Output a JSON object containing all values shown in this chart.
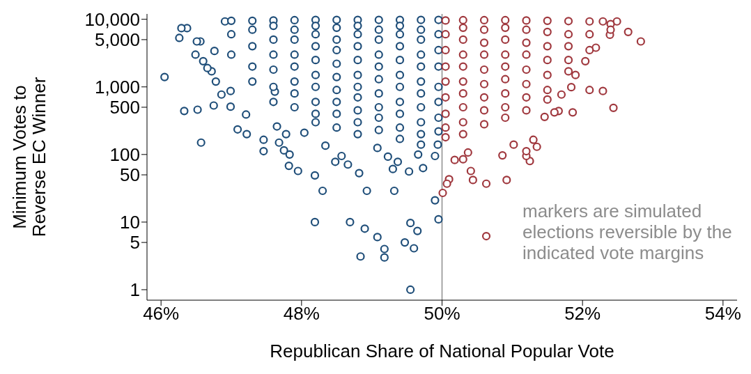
{
  "chart_data": {
    "type": "scatter",
    "xlabel": "Republican Share of National Popular Vote",
    "ylabel": "Minimum Votes to\nReverse EC Winner",
    "log": "y",
    "grid": false,
    "legend": false,
    "marker": "circle",
    "xlim": [
      45.8,
      54.2
    ],
    "xticks": [
      {
        "value": 46,
        "label": "46%"
      },
      {
        "value": 48,
        "label": "48%"
      },
      {
        "value": 50,
        "label": "50%"
      },
      {
        "value": 52,
        "label": "52%"
      },
      {
        "value": 54,
        "label": "54%"
      }
    ],
    "ylim": [
      0.7,
      12000
    ],
    "yticks": [
      1,
      5,
      10,
      50,
      100,
      500,
      {
        "value": 1000,
        "label": "1,000"
      },
      {
        "value": 5000,
        "label": "5,000"
      },
      {
        "value": 10000,
        "label": "10,000"
      }
    ],
    "ref_lines": [
      {
        "axis": "x",
        "value": 50,
        "color": "#8c8c8c"
      }
    ],
    "annotations": [
      "markers are simulated elections reversible by the indicated vote margins"
    ],
    "series": [
      {
        "color": "#1f4e79",
        "x": [
          46.05,
          46.33,
          46.52,
          46.57,
          46.75,
          46.99,
          47.09,
          47.22,
          47.46,
          47.46,
          47.65,
          47.68,
          47.75,
          47.82,
          47.95,
          47.83,
          48.19,
          48.3,
          48.48,
          48.19,
          48.69,
          48.9,
          48.93,
          49.08,
          48.84,
          49.18,
          49.18,
          49.32,
          49.47,
          49.55,
          49.65,
          49.6,
          49.55,
          49.9,
          49.95,
          49.9,
          49.94,
          49.3,
          49.23,
          49.08,
          48.66,
          48.82,
          49.53,
          49.66,
          49.73,
          49.37,
          48.57,
          48.34,
          48.04,
          47.78,
          47.62,
          47.21,
          46.99,
          46.6,
          46.49,
          46.26,
          46.37,
          46.56,
          46.76,
          46.72,
          46.78,
          46.86,
          46.66,
          46.51,
          46.29,
          46.91,
          47.0,
          47.0,
          47.0,
          47.3,
          47.3,
          47.3,
          47.3,
          47.3,
          47.6,
          47.6,
          47.6,
          47.6,
          47.6,
          47.6,
          47.6,
          47.9,
          47.9,
          47.9,
          47.9,
          47.9,
          47.9,
          47.9,
          47.9,
          48.2,
          48.2,
          48.2,
          48.2,
          48.2,
          48.2,
          48.2,
          48.2,
          48.2,
          48.2,
          48.5,
          48.5,
          48.5,
          48.5,
          48.5,
          48.5,
          48.5,
          48.5,
          48.5,
          48.5,
          48.8,
          48.8,
          48.8,
          48.8,
          48.8,
          48.8,
          48.8,
          48.8,
          48.8,
          48.8,
          48.8,
          49.1,
          49.1,
          49.1,
          49.1,
          49.1,
          49.1,
          49.1,
          49.1,
          49.1,
          49.1,
          49.4,
          49.4,
          49.4,
          49.4,
          49.4,
          49.4,
          49.4,
          49.4,
          49.4,
          49.4,
          49.4,
          49.7,
          49.7,
          49.7,
          49.7,
          49.7,
          49.7,
          49.7,
          49.7,
          49.7,
          49.7,
          49.7,
          49.95,
          49.95,
          49.95,
          49.95,
          49.95,
          49.95,
          49.95,
          49.95
        ],
        "values": [
          1400,
          440,
          460,
          150,
          530,
          870,
          235,
          200,
          165,
          112,
          260,
          150,
          115,
          68,
          57,
          100,
          49,
          29,
          78,
          10,
          10,
          8,
          29,
          6,
          3.1,
          4,
          3,
          29,
          5,
          9.7,
          7.4,
          4.1,
          1,
          21,
          11,
          95,
          140,
          61,
          93,
          125,
          71,
          53,
          56,
          100,
          63,
          78,
          95,
          135,
          210,
          200,
          850,
          390,
          510,
          2400,
          3000,
          5300,
          7400,
          4700,
          3400,
          1700,
          1200,
          770,
          1900,
          4700,
          7400,
          9300,
          9500,
          6000,
          3000,
          9500,
          7000,
          4000,
          2000,
          1200,
          9600,
          8000,
          5000,
          3000,
          1800,
          1000,
          600,
          9700,
          7000,
          5000,
          3000,
          2000,
          1200,
          800,
          500,
          9800,
          8000,
          6000,
          4000,
          2500,
          1500,
          1000,
          600,
          400,
          300,
          9800,
          7500,
          5000,
          3500,
          2200,
          1400,
          900,
          600,
          400,
          250,
          9800,
          8000,
          6000,
          4000,
          2500,
          1500,
          1000,
          700,
          450,
          300,
          200,
          9800,
          7000,
          5000,
          3000,
          2000,
          1300,
          800,
          500,
          350,
          230,
          9800,
          8000,
          6000,
          4000,
          2500,
          1500,
          1000,
          600,
          400,
          250,
          170,
          9800,
          7000,
          5000,
          3000,
          2000,
          1200,
          800,
          500,
          300,
          200,
          140,
          9800,
          6000,
          3500,
          2000,
          1000,
          600,
          350,
          220
        ]
      },
      {
        "color": "#a0383e",
        "x": [
          52.83,
          52.65,
          52.29,
          52.44,
          52.1,
          51.84,
          51.66,
          51.86,
          51.46,
          51.35,
          51.25,
          51.2,
          51.02,
          50.92,
          50.63,
          50.63,
          50.44,
          50.41,
          50.18,
          50.1,
          50.07,
          50.01,
          50.3,
          50.37,
          50.86,
          51.2,
          51.3,
          51.6,
          51.7,
          51.9,
          52.04,
          52.19,
          52.39,
          52.49,
          52.29,
          50.05,
          50.05,
          50.05,
          50.05,
          50.05,
          50.05,
          50.05,
          50.05,
          50.05,
          50.3,
          50.3,
          50.3,
          50.3,
          50.3,
          50.3,
          50.3,
          50.3,
          50.3,
          50.3,
          50.6,
          50.6,
          50.6,
          50.6,
          50.6,
          50.6,
          50.6,
          50.6,
          50.6,
          50.9,
          50.9,
          50.9,
          50.9,
          50.9,
          50.9,
          50.9,
          50.9,
          50.9,
          51.2,
          51.2,
          51.2,
          51.2,
          51.2,
          51.2,
          51.2,
          51.2,
          51.5,
          51.5,
          51.5,
          51.5,
          51.5,
          51.5,
          51.5,
          51.8,
          51.8,
          51.8,
          51.8,
          51.8,
          52.1,
          52.1,
          52.1,
          52.4,
          52.4
        ],
        "values": [
          4700,
          6500,
          870,
          490,
          900,
          990,
          440,
          420,
          360,
          130,
          80,
          95,
          140,
          42,
          37,
          6.2,
          42,
          57,
          83,
          43,
          37,
          27,
          85,
          107,
          97,
          112,
          165,
          420,
          770,
          1500,
          2400,
          3800,
          5900,
          9300,
          9300,
          9600,
          6000,
          3500,
          2000,
          1200,
          700,
          400,
          250,
          180,
          9700,
          7500,
          5000,
          3000,
          2000,
          1200,
          800,
          500,
          300,
          200,
          9700,
          7000,
          4500,
          3000,
          1800,
          1100,
          700,
          450,
          280,
          9700,
          7500,
          5000,
          3000,
          2000,
          1300,
          800,
          500,
          350,
          9600,
          7000,
          4500,
          3000,
          1800,
          1100,
          700,
          450,
          9500,
          6500,
          4000,
          2500,
          1500,
          900,
          650,
          9400,
          6000,
          4000,
          2500,
          1700,
          9300,
          6000,
          3500,
          8500,
          7000
        ]
      }
    ]
  }
}
